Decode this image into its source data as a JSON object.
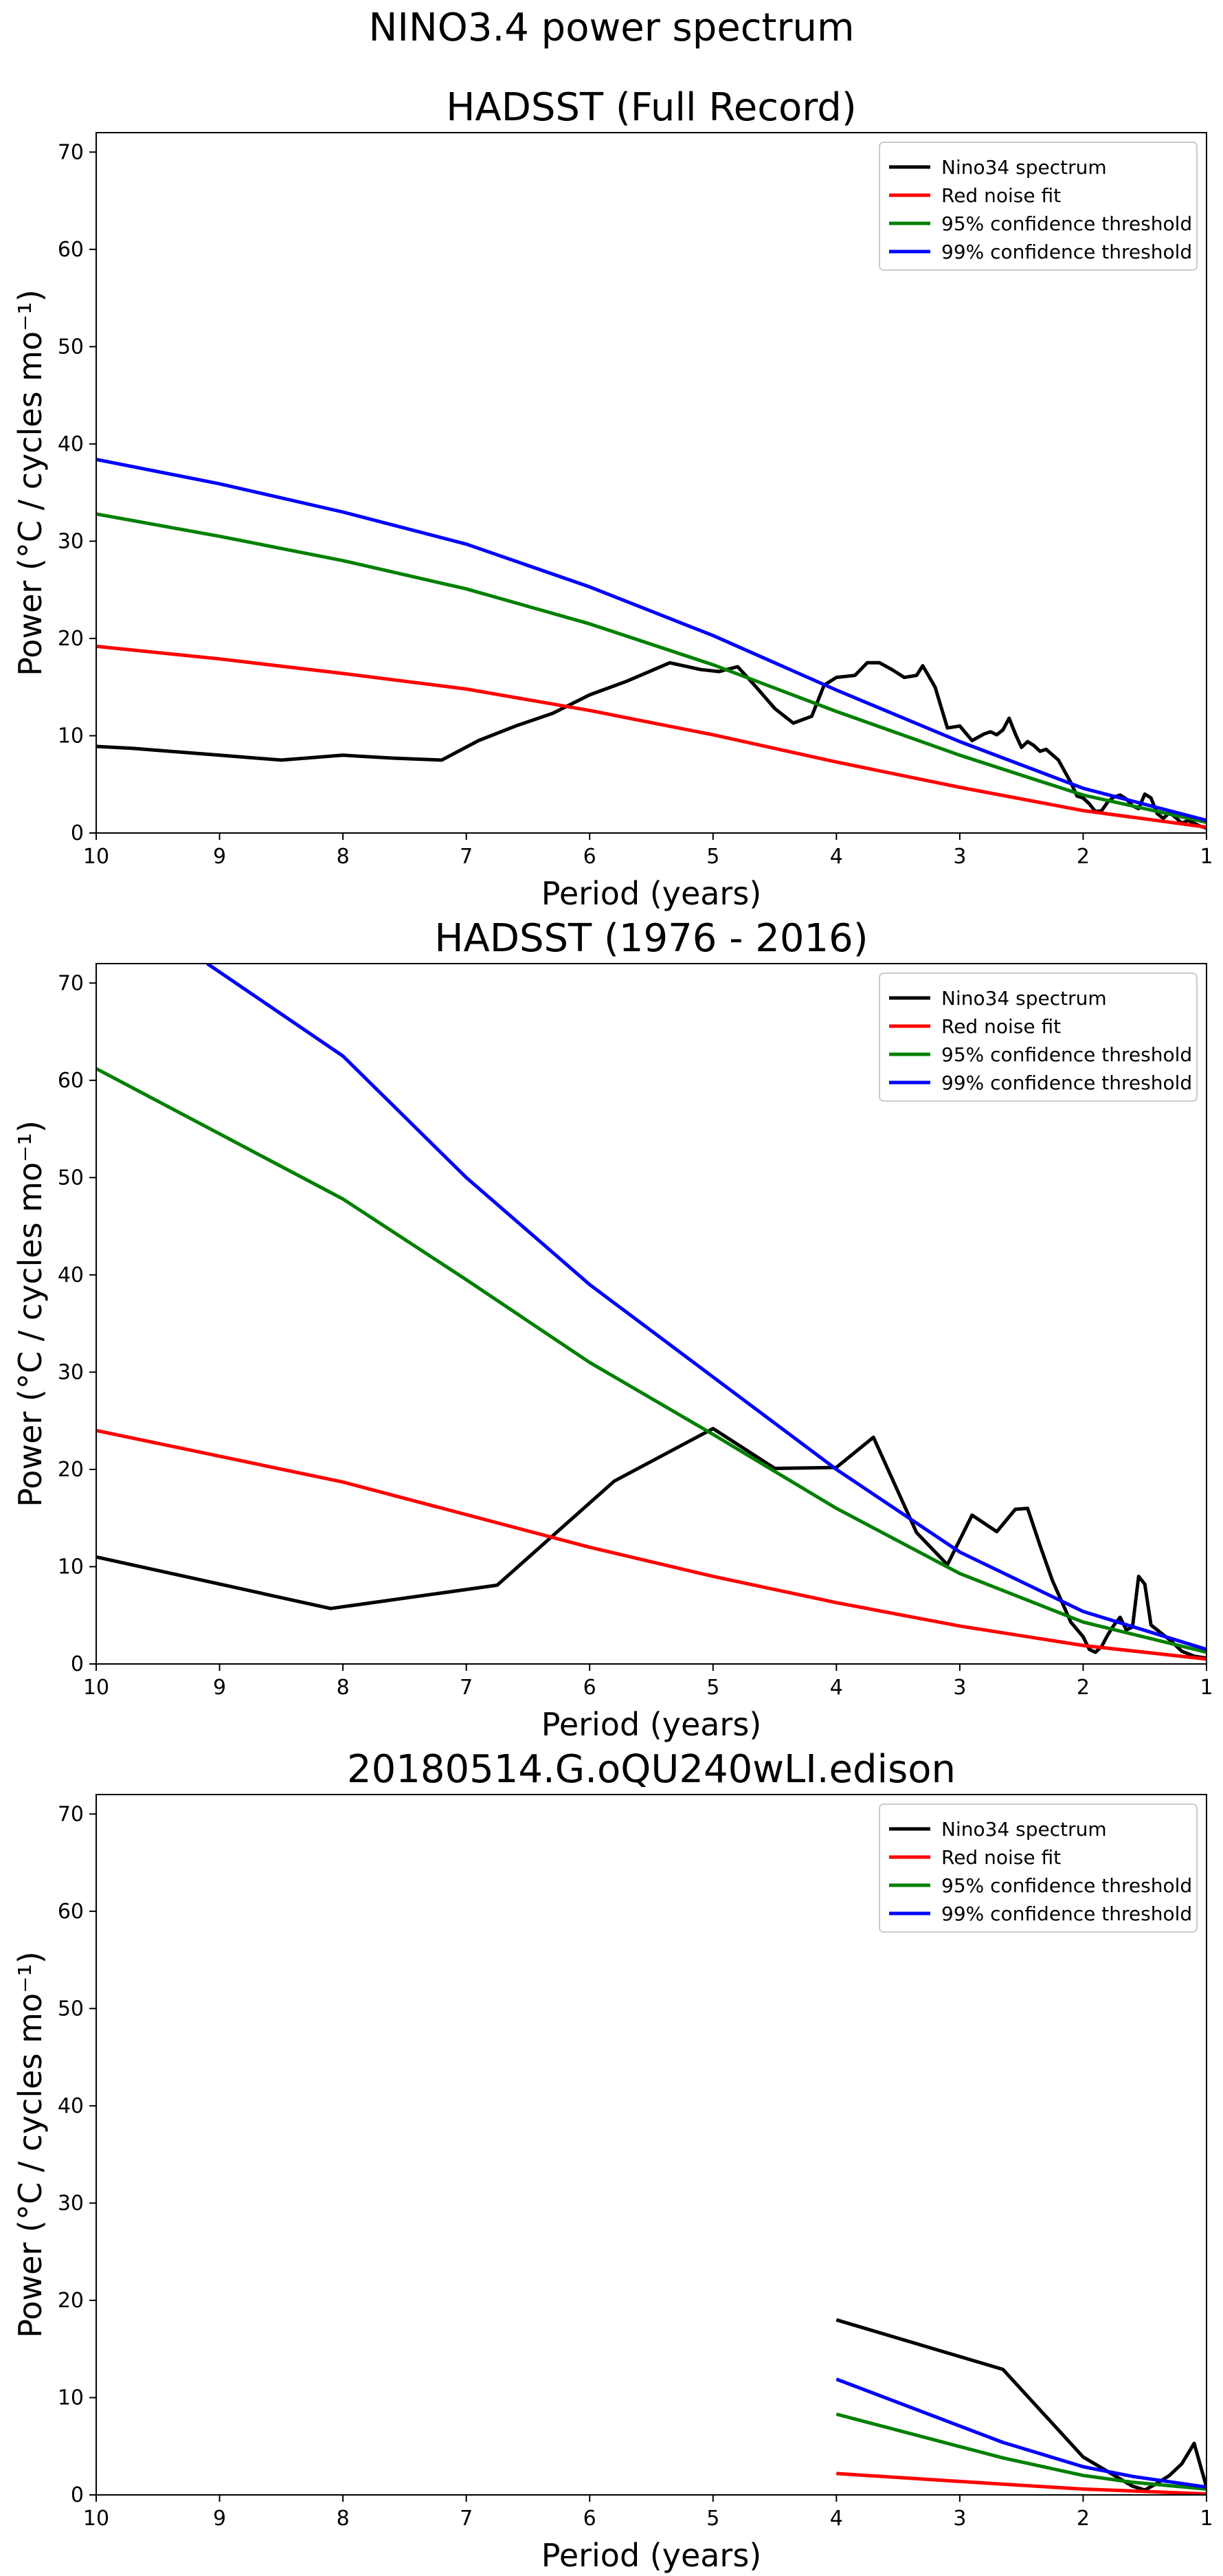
{
  "page": {
    "title": "NINO3.4 power spectrum"
  },
  "colors": {
    "nino34": "#000000",
    "red_noise": "#ff0000",
    "conf95": "#008000",
    "conf99": "#0000ff"
  },
  "chart_data": [
    {
      "type": "line",
      "title": "HADSST (Full Record)",
      "xlabel": "Period (years)",
      "ylabel": "Power (°C / cycles mo⁻¹)",
      "xlim": [
        10,
        1
      ],
      "ylim": [
        0,
        72
      ],
      "xticks": [
        10,
        9,
        8,
        7,
        6,
        5,
        4,
        3,
        2,
        1
      ],
      "yticks": [
        0,
        10,
        20,
        30,
        40,
        50,
        60,
        70
      ],
      "grid": false,
      "legend": "top-right",
      "series": [
        {
          "name": "Nino34 spectrum",
          "color": "#000000",
          "x": [
            10,
            9.7,
            9.0,
            8.5,
            8.0,
            7.6,
            7.2,
            6.9,
            6.6,
            6.3,
            6.0,
            5.7,
            5.35,
            5.1,
            4.95,
            4.8,
            4.65,
            4.5,
            4.35,
            4.2,
            4.1,
            4.0,
            3.85,
            3.75,
            3.65,
            3.55,
            3.45,
            3.35,
            3.3,
            3.2,
            3.1,
            3.0,
            2.9,
            2.8,
            2.75,
            2.7,
            2.65,
            2.6,
            2.55,
            2.5,
            2.45,
            2.4,
            2.35,
            2.3,
            2.2,
            2.1,
            2.05,
            2.0,
            1.95,
            1.9,
            1.85,
            1.8,
            1.75,
            1.7,
            1.65,
            1.6,
            1.55,
            1.5,
            1.45,
            1.4,
            1.35,
            1.3,
            1.25,
            1.2,
            1.15,
            1.1,
            1.05,
            1.0
          ],
          "y": [
            8.9,
            8.7,
            8.0,
            7.5,
            8.0,
            7.7,
            7.5,
            9.5,
            11.0,
            12.3,
            14.2,
            15.6,
            17.5,
            16.8,
            16.6,
            17.1,
            15.0,
            12.8,
            11.3,
            12.0,
            15.2,
            16.0,
            16.2,
            17.5,
            17.5,
            16.8,
            16.0,
            16.2,
            17.2,
            15.0,
            10.8,
            11.0,
            9.5,
            10.2,
            10.4,
            10.1,
            10.6,
            11.8,
            10.2,
            8.8,
            9.4,
            9.0,
            8.4,
            8.6,
            7.5,
            5.2,
            3.8,
            3.6,
            3.0,
            2.2,
            2.3,
            3.2,
            3.7,
            3.9,
            3.5,
            2.8,
            2.5,
            4.0,
            3.6,
            2.0,
            1.5,
            2.1,
            1.6,
            1.0,
            1.3,
            1.0,
            0.7,
            0.5
          ]
        },
        {
          "name": "Red noise fit",
          "color": "#ff0000",
          "x": [
            10,
            9,
            8,
            7,
            6,
            5,
            4,
            3,
            2,
            1
          ],
          "y": [
            19.2,
            17.9,
            16.4,
            14.8,
            12.6,
            10.1,
            7.3,
            4.7,
            2.3,
            0.6
          ]
        },
        {
          "name": "95% confidence threshold",
          "color": "#008000",
          "x": [
            10,
            9,
            8,
            7,
            6,
            5,
            4,
            3,
            2,
            1
          ],
          "y": [
            32.8,
            30.5,
            28.0,
            25.1,
            21.5,
            17.3,
            12.5,
            8.0,
            3.9,
            1.1
          ]
        },
        {
          "name": "99% confidence threshold",
          "color": "#0000ff",
          "x": [
            10,
            9,
            8,
            7,
            6,
            5,
            4,
            3,
            2,
            1
          ],
          "y": [
            38.4,
            35.9,
            33.0,
            29.7,
            25.3,
            20.3,
            14.7,
            9.4,
            4.6,
            1.3
          ]
        }
      ]
    },
    {
      "type": "line",
      "title": "HADSST (1976 - 2016)",
      "xlabel": "Period (years)",
      "ylabel": "Power (°C / cycles mo⁻¹)",
      "xlim": [
        10,
        1
      ],
      "ylim": [
        0,
        72
      ],
      "xticks": [
        10,
        9,
        8,
        7,
        6,
        5,
        4,
        3,
        2,
        1
      ],
      "yticks": [
        0,
        10,
        20,
        30,
        40,
        50,
        60,
        70
      ],
      "grid": false,
      "legend": "top-right",
      "series": [
        {
          "name": "Nino34 spectrum",
          "color": "#000000",
          "x": [
            10,
            8.1,
            6.75,
            5.8,
            5.0,
            4.5,
            4.0,
            3.7,
            3.35,
            3.1,
            2.9,
            2.7,
            2.55,
            2.45,
            2.35,
            2.25,
            2.1,
            2.0,
            1.95,
            1.9,
            1.85,
            1.8,
            1.75,
            1.7,
            1.65,
            1.6,
            1.55,
            1.5,
            1.45,
            1.4,
            1.3,
            1.2,
            1.1,
            1.0
          ],
          "y": [
            11.0,
            5.7,
            8.1,
            18.8,
            24.2,
            20.1,
            20.2,
            23.3,
            13.5,
            10.2,
            15.3,
            13.6,
            15.9,
            16.0,
            12.2,
            8.6,
            4.3,
            2.8,
            1.5,
            1.2,
            1.8,
            3.0,
            4.0,
            4.8,
            3.5,
            3.8,
            9.0,
            8.2,
            4.0,
            3.5,
            2.5,
            1.3,
            0.8,
            0.6
          ]
        },
        {
          "name": "Red noise fit",
          "color": "#ff0000",
          "x": [
            10,
            8,
            6,
            5,
            4,
            3,
            2,
            1
          ],
          "y": [
            24.0,
            18.7,
            12.0,
            9.0,
            6.3,
            3.9,
            1.9,
            0.5
          ]
        },
        {
          "name": "95% confidence threshold",
          "color": "#008000",
          "x": [
            10,
            8,
            7,
            6,
            5,
            4,
            3,
            2,
            1
          ],
          "y": [
            61.2,
            47.8,
            39.5,
            31.0,
            23.6,
            16.0,
            9.3,
            4.3,
            1.2
          ]
        },
        {
          "name": "99% confidence threshold",
          "color": "#0000ff",
          "x": [
            9.1,
            8,
            7,
            6,
            5,
            4,
            3,
            2,
            1
          ],
          "y": [
            72.0,
            62.5,
            50.0,
            39.0,
            29.5,
            20.0,
            11.5,
            5.4,
            1.5
          ]
        }
      ]
    },
    {
      "type": "line",
      "title": "20180514.G.oQU240wLI.edison",
      "xlabel": "Period (years)",
      "ylabel": "Power (°C / cycles mo⁻¹)",
      "xlim": [
        10,
        1
      ],
      "ylim": [
        0,
        72
      ],
      "xticks": [
        10,
        9,
        8,
        7,
        6,
        5,
        4,
        3,
        2,
        1
      ],
      "yticks": [
        0,
        10,
        20,
        30,
        40,
        50,
        60,
        70
      ],
      "grid": false,
      "legend": "top-right",
      "series": [
        {
          "name": "Nino34 spectrum",
          "color": "#000000",
          "x": [
            4.0,
            2.65,
            2.0,
            1.6,
            1.5,
            1.4,
            1.3,
            1.2,
            1.1,
            1.0
          ],
          "y": [
            18.0,
            12.9,
            3.9,
            0.9,
            0.5,
            1.2,
            2.0,
            3.2,
            5.3,
            0.8
          ]
        },
        {
          "name": "Red noise fit",
          "color": "#ff0000",
          "x": [
            4.0,
            2.65,
            2.0,
            1.6,
            1.0
          ],
          "y": [
            2.2,
            1.1,
            0.6,
            0.4,
            0.1
          ]
        },
        {
          "name": "95% confidence threshold",
          "color": "#008000",
          "x": [
            4.0,
            2.65,
            2.0,
            1.6,
            1.0
          ],
          "y": [
            8.3,
            3.8,
            2.0,
            1.3,
            0.6
          ]
        },
        {
          "name": "99% confidence threshold",
          "color": "#0000ff",
          "x": [
            4.0,
            2.65,
            2.0,
            1.6,
            1.0
          ],
          "y": [
            11.9,
            5.4,
            2.9,
            1.9,
            0.8
          ]
        }
      ]
    }
  ]
}
